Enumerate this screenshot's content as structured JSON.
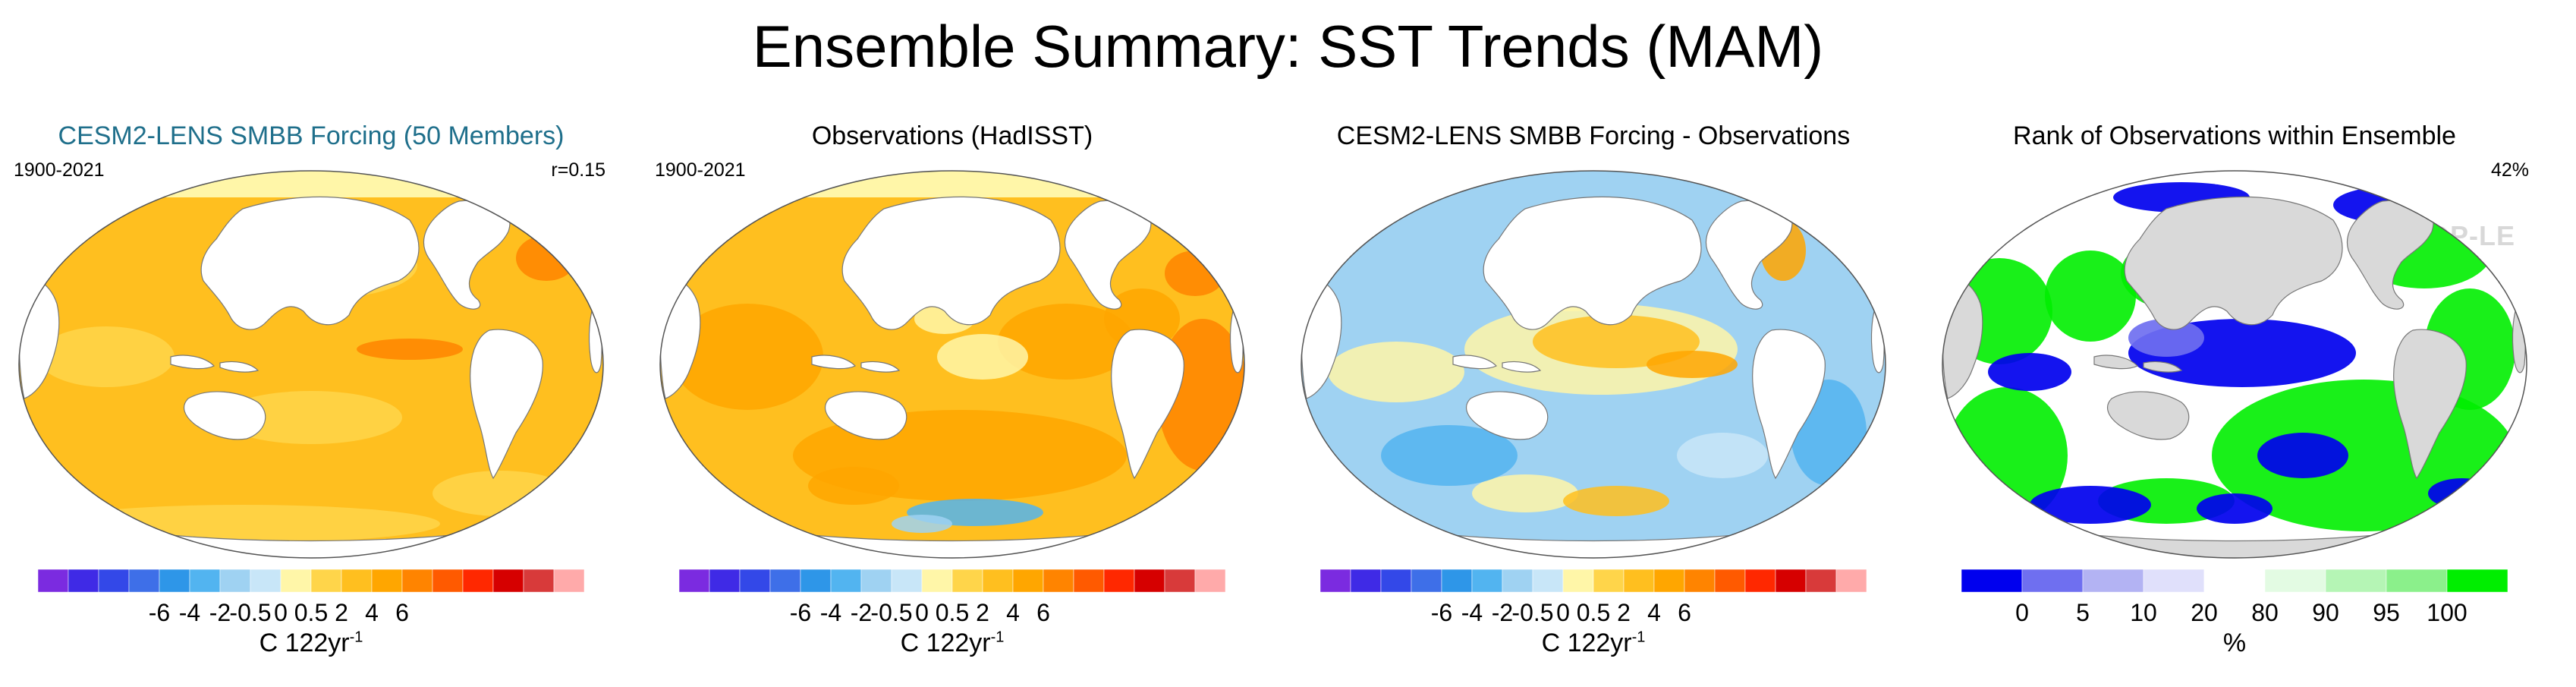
{
  "title": "Ensemble Summary: SST Trends (MAM)",
  "watermark": "© CVDP-LE",
  "colors": {
    "land": "#ffffff",
    "land_grey": "#d9d9d9",
    "coast": "#777777",
    "sst_scale": [
      "#7b2be0",
      "#3f2ae6",
      "#3348e8",
      "#3e6fe8",
      "#2e96e8",
      "#52b4f0",
      "#9fd2f2",
      "#c8e6f8",
      "#fff6a8",
      "#ffd54a",
      "#ffbf1f",
      "#ffa600",
      "#ff8400",
      "#ff5a00",
      "#ff2800",
      "#d60000",
      "#d83a3a",
      "#ffaaaa"
    ],
    "rank_scale": [
      "#0000ee",
      "#6f6ff0",
      "#b3b3f3",
      "#e0e0fb",
      "#ffffff",
      "#e3fbe3",
      "#b5f5b5",
      "#8bf08b",
      "#00ee00"
    ]
  },
  "chart_data": [
    {
      "type": "heatmap",
      "title": "CESM2-LENS SMBB Forcing (50 Members)",
      "period": "1900-2021",
      "stat": "r=0.15",
      "variant": "ensemble",
      "colorbar": {
        "ticks": [
          "-6",
          "-4",
          "-2",
          "-0.5",
          "0",
          "0.5",
          "2",
          "4",
          "6"
        ],
        "unit": "C 122yr",
        "unit_sup": "-1"
      }
    },
    {
      "type": "heatmap",
      "title": "Observations (HadISST)",
      "period": "1900-2021",
      "variant": "observations",
      "colorbar": {
        "ticks": [
          "-6",
          "-4",
          "-2",
          "-0.5",
          "0",
          "0.5",
          "2",
          "4",
          "6"
        ],
        "unit": "C 122yr",
        "unit_sup": "-1"
      }
    },
    {
      "type": "heatmap",
      "title": "CESM2-LENS SMBB Forcing - Observations",
      "variant": "difference",
      "colorbar": {
        "ticks": [
          "-6",
          "-4",
          "-2",
          "-0.5",
          "0",
          "0.5",
          "2",
          "4",
          "6"
        ],
        "unit": "C 122yr",
        "unit_sup": "-1"
      }
    },
    {
      "type": "heatmap",
      "title": "Rank of Observations within Ensemble",
      "stat": "42%",
      "variant": "rank",
      "colorbar": {
        "ticks": [
          "0",
          "5",
          "10",
          "20",
          "80",
          "90",
          "95",
          "100"
        ],
        "unit": "%"
      }
    }
  ]
}
